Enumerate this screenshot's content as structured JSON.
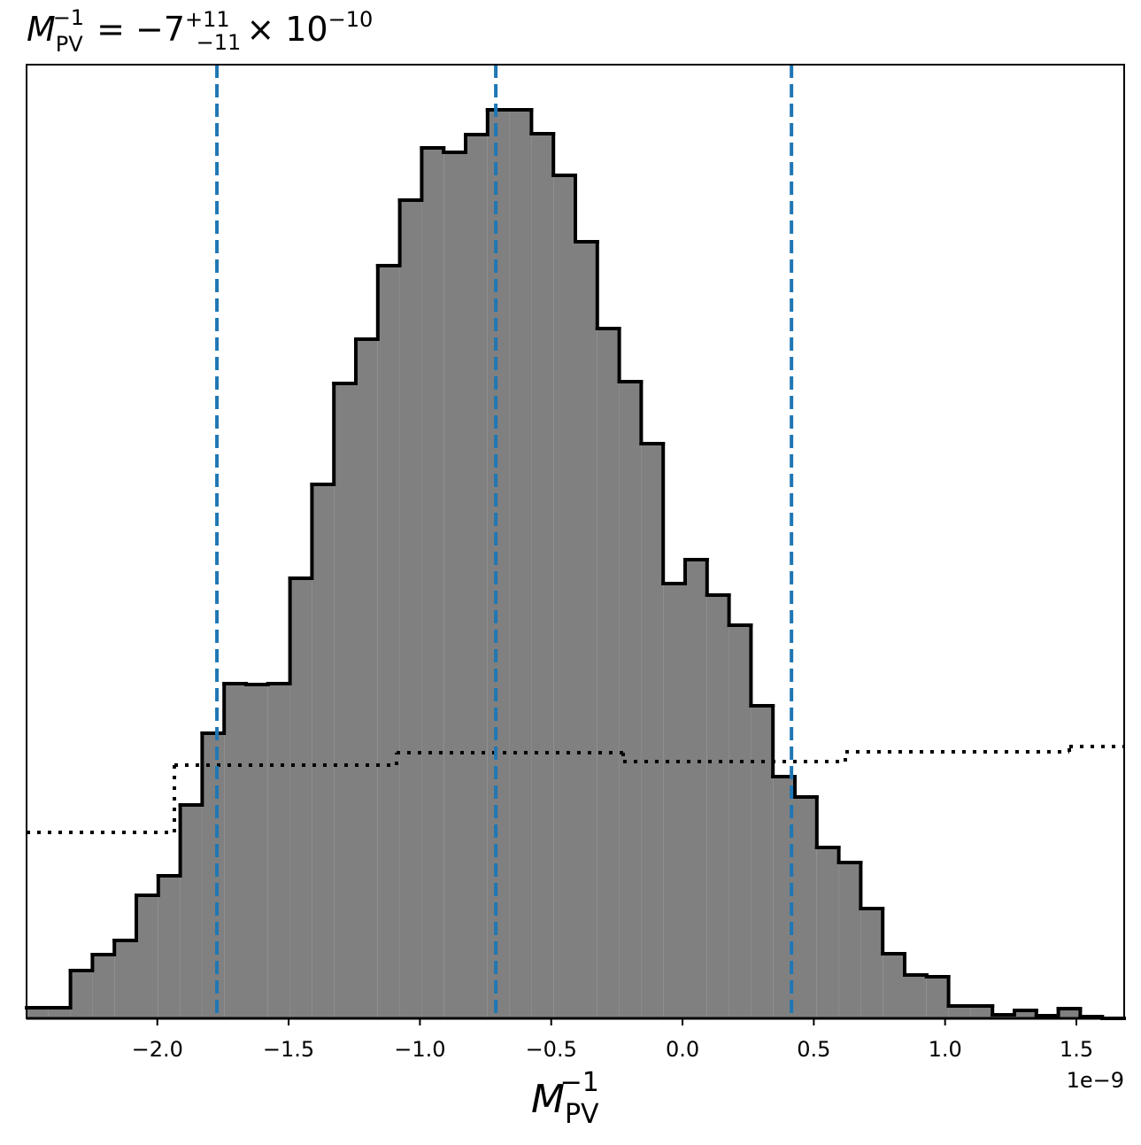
{
  "chart_data": {
    "type": "histogram",
    "title": {
      "symbol": "M",
      "sub": "PV",
      "sup": "−1",
      "eq": "= −7",
      "upper": "+11",
      "lower": "−11",
      "times": "× 10",
      "exp": "−10"
    },
    "xlabel": {
      "symbol": "M",
      "sub": "PV",
      "sup": "−1"
    },
    "x_offset_label": "1e−9",
    "bins": [
      -2.498,
      -2.4144,
      -2.3308,
      -2.2472,
      -2.1636,
      -2.08,
      -1.9964,
      -1.9128,
      -1.8292,
      -1.7456,
      -1.662,
      -1.5784,
      -1.4948,
      -1.4112,
      -1.3276,
      -1.244,
      -1.1604,
      -1.0768,
      -0.9932,
      -0.9096,
      -0.826,
      -0.7424,
      -0.6588,
      -0.5752,
      -0.4916,
      -0.408,
      -0.3244,
      -0.2408,
      -0.1572,
      -0.0736,
      0.01,
      0.0936,
      0.1772,
      0.2608,
      0.3444,
      0.428,
      0.5116,
      0.5952,
      0.6788,
      0.7624,
      0.846,
      0.9296,
      1.0132,
      1.0968,
      1.1804,
      1.264,
      1.3476,
      1.4312,
      1.5148,
      1.5984,
      1.682
    ],
    "values": [
      12,
      12,
      54,
      72,
      88,
      139,
      161,
      241,
      322,
      378,
      377,
      378,
      497,
      603,
      717,
      767,
      850,
      924,
      983,
      978,
      998,
      1026,
      1026,
      999,
      952,
      877,
      779,
      719,
      649,
      491,
      518,
      478,
      444,
      353,
      273,
      250,
      193,
      176,
      124,
      73,
      49,
      47,
      14,
      14,
      4,
      9,
      3,
      11,
      2,
      0
    ],
    "color": "#808080",
    "edgecolor": "#000000",
    "prior": {
      "bins": [
        -2.498,
        -1.935,
        -1.089,
        -0.226,
        0.62,
        1.473,
        1.682
      ],
      "values": [
        210,
        286,
        300,
        290,
        301,
        307
      ],
      "color": "#000000"
    },
    "vlines": [
      -1.773,
      -0.711,
      0.415
    ],
    "vline_color": "#1f77b4",
    "xlim": [
      -2.498,
      1.682
    ],
    "ylim": [
      0,
      1077
    ],
    "xticks": [
      {
        "value": -2,
        "label": "−2.0"
      },
      {
        "value": -1.5,
        "label": "−1.5"
      },
      {
        "value": -1,
        "label": "−1.0"
      },
      {
        "value": -0.5,
        "label": "−0.5"
      },
      {
        "value": 0,
        "label": "0.0"
      },
      0.5,
      {
        "value": 1,
        "label": "1.0"
      },
      1.5
    ]
  }
}
